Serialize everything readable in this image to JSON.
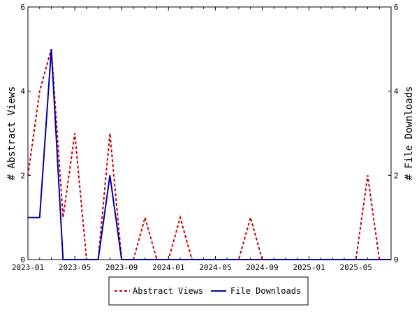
{
  "chart_data": {
    "type": "line",
    "x": [
      "2023-01",
      "2023-02",
      "2023-03",
      "2023-04",
      "2023-05",
      "2023-06",
      "2023-07",
      "2023-08",
      "2023-09",
      "2023-10",
      "2023-11",
      "2023-12",
      "2024-01",
      "2024-02",
      "2024-03",
      "2024-04",
      "2024-05",
      "2024-06",
      "2024-07",
      "2024-08",
      "2024-09",
      "2024-10",
      "2024-11",
      "2024-12",
      "2025-01",
      "2025-02",
      "2025-03",
      "2025-04",
      "2025-05",
      "2025-06",
      "2025-07",
      "2025-08"
    ],
    "series": [
      {
        "name": "Abstract Views",
        "axis": "left",
        "color": "#cc0000",
        "dash": "dashed",
        "values": [
          2,
          4,
          5,
          1,
          3,
          0,
          0,
          3,
          0,
          0,
          1,
          0,
          0,
          1,
          0,
          0,
          0,
          0,
          0,
          1,
          0,
          0,
          0,
          0,
          0,
          0,
          0,
          0,
          0,
          2,
          0,
          0
        ]
      },
      {
        "name": "File Downloads",
        "axis": "right",
        "color": "#0000aa",
        "dash": "solid",
        "values": [
          1,
          1,
          5,
          0,
          0,
          0,
          0,
          2,
          0,
          0,
          0,
          0,
          0,
          0,
          0,
          0,
          0,
          0,
          0,
          0,
          0,
          0,
          0,
          0,
          0,
          0,
          0,
          0,
          0,
          0,
          0,
          0
        ]
      }
    ],
    "x_tick_labels": [
      "2023-01",
      "2023-05",
      "2023-09",
      "2024-01",
      "2024-05",
      "2024-09",
      "2025-01",
      "2025-05"
    ],
    "ylabel_left": "# Abstract Views",
    "ylabel_right": "# File Downloads",
    "ylim": [
      0,
      6
    ],
    "y_tick_labels": [
      "0",
      "2",
      "4",
      "6"
    ],
    "grid": false,
    "legend_placement": "bottom-center"
  },
  "legend": {
    "abstract_views": "Abstract Views",
    "file_downloads": "File Downloads"
  }
}
